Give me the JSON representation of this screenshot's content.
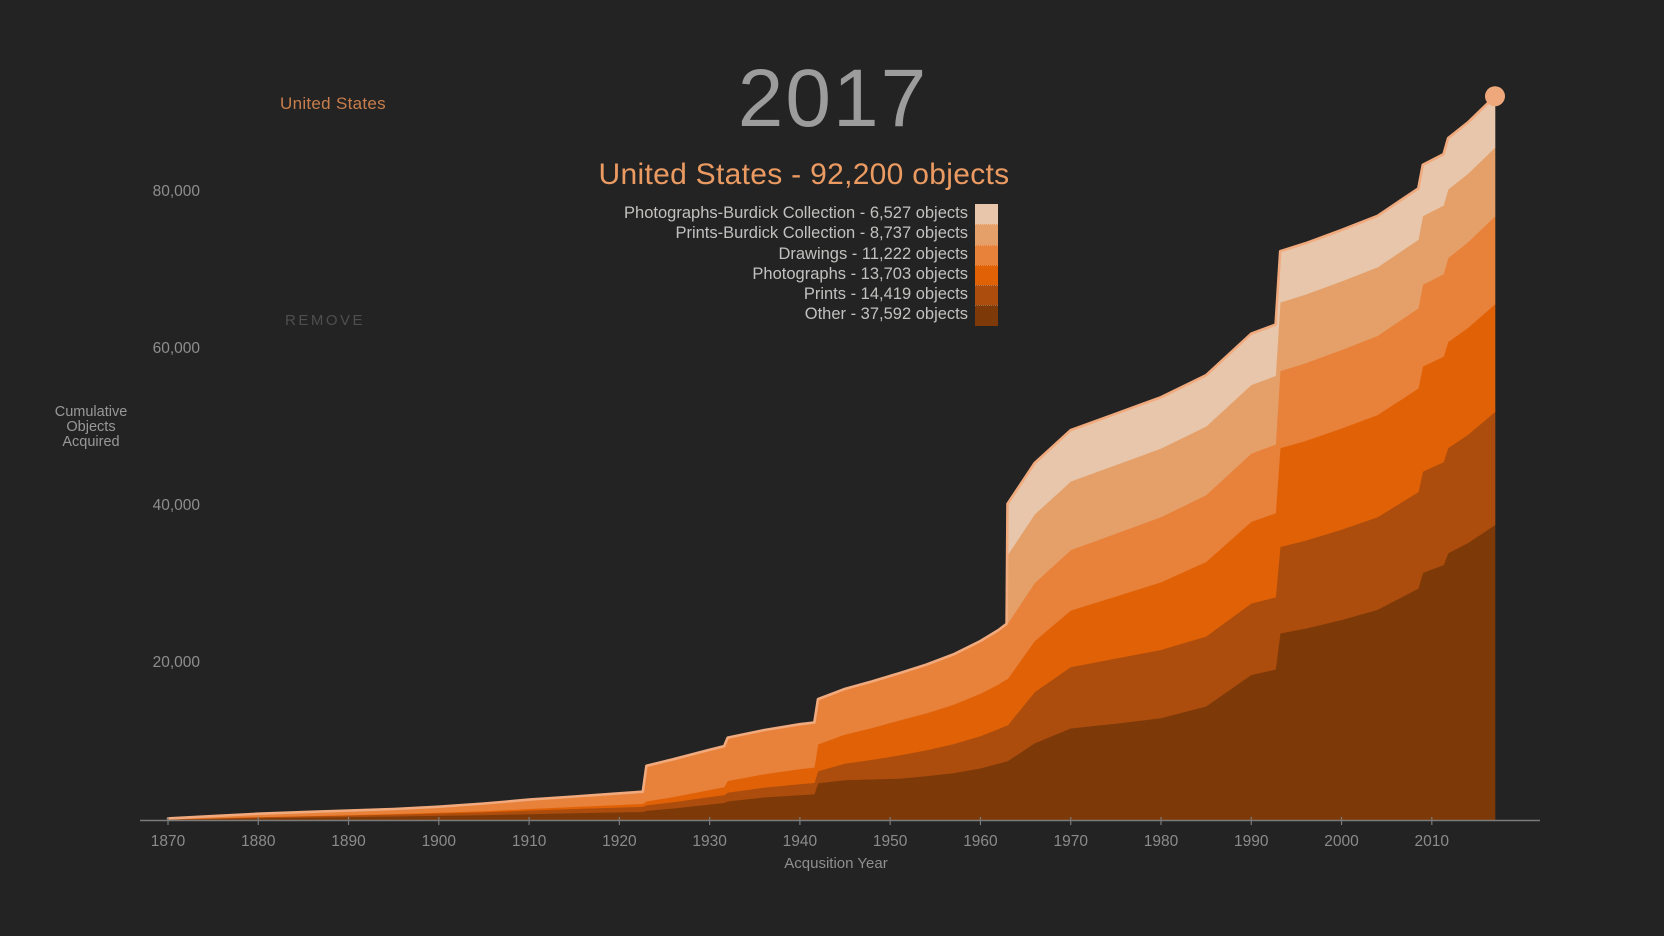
{
  "page": {
    "background": "#232323"
  },
  "header": {
    "year_display": "2017",
    "subtitle": "United States - 92,200 objects"
  },
  "filter_chip": {
    "label": "United States",
    "color": "#c87e4c"
  },
  "remove_button": {
    "label": "REMOVE"
  },
  "legend": {
    "items": [
      {
        "label": "Photographs-Burdick Collection - 6,527 objects",
        "color": "#e7c6ab"
      },
      {
        "label": "Prints-Burdick Collection - 8,737 objects",
        "color": "#e5a069"
      },
      {
        "label": "Drawings - 11,222 objects",
        "color": "#e8813a"
      },
      {
        "label": "Photographs - 13,703 objects",
        "color": "#e16206"
      },
      {
        "label": "Prints - 14,419 objects",
        "color": "#ac4d0e"
      },
      {
        "label": "Other - 37,592 objects",
        "color": "#7d3a08"
      }
    ]
  },
  "chart_data": {
    "type": "area",
    "stacked": true,
    "title": "2017",
    "subtitle": "United States - 92,200 objects",
    "xlabel": "Acqusition Year",
    "ylabel": "Cumulative Objects Acquired",
    "y_axis_title_lines": [
      "Cumulative",
      "Objects",
      "Acquired"
    ],
    "legend_position": "top-center",
    "grid": false,
    "x_domain": [
      1870,
      2017
    ],
    "y_domain": [
      0,
      92200
    ],
    "x_ticks": [
      {
        "value": 1870,
        "label": "1870"
      },
      {
        "value": 1880,
        "label": "1880"
      },
      {
        "value": 1890,
        "label": "1890"
      },
      {
        "value": 1900,
        "label": "1900"
      },
      {
        "value": 1910,
        "label": "1910"
      },
      {
        "value": 1920,
        "label": "1920"
      },
      {
        "value": 1930,
        "label": "1930"
      },
      {
        "value": 1940,
        "label": "1940"
      },
      {
        "value": 1950,
        "label": "1950"
      },
      {
        "value": 1960,
        "label": "1960"
      },
      {
        "value": 1970,
        "label": "1970"
      },
      {
        "value": 1980,
        "label": "1980"
      },
      {
        "value": 1990,
        "label": "1990"
      },
      {
        "value": 2000,
        "label": "2000"
      },
      {
        "value": 2010,
        "label": "2010"
      }
    ],
    "y_ticks": [
      {
        "value": 20000,
        "label": "20,000"
      },
      {
        "value": 40000,
        "label": "40,000"
      },
      {
        "value": 60000,
        "label": "60,000"
      },
      {
        "value": 80000,
        "label": "80,000"
      }
    ],
    "total_at_2017": 92200,
    "years": [
      1870,
      1875,
      1880,
      1885,
      1890,
      1895,
      1900,
      1905,
      1908,
      1910,
      1915,
      1920,
      1922.6,
      1923,
      1926,
      1930,
      1931.6,
      1932,
      1936,
      1940,
      1941.6,
      1942,
      1945,
      1948,
      1951,
      1954,
      1957,
      1960,
      1962,
      1962.9,
      1963,
      1966,
      1970,
      1975,
      1980,
      1985,
      1990,
      1992.7,
      1993.2,
      1996,
      2000,
      2004,
      2008.5,
      2009,
      2011.3,
      2011.8,
      2014,
      2017
    ],
    "series": [
      {
        "name": "Other",
        "final_total": 37592,
        "color": "#7d3a08",
        "values": [
          60,
          150,
          250,
          320,
          400,
          480,
          560,
          650,
          720,
          780,
          900,
          1000,
          1050,
          1200,
          1500,
          2000,
          2200,
          2400,
          2900,
          3200,
          3300,
          4700,
          5100,
          5200,
          5300,
          5600,
          6000,
          6600,
          7200,
          7500,
          7500,
          9800,
          11700,
          12300,
          13000,
          14500,
          18500,
          19200,
          23800,
          24400,
          25500,
          26800,
          29500,
          31500,
          32500,
          34000,
          35300,
          37592
        ]
      },
      {
        "name": "Prints",
        "final_total": 14419,
        "color": "#ac4d0e",
        "values": [
          40,
          80,
          120,
          160,
          200,
          240,
          300,
          360,
          420,
          460,
          540,
          620,
          660,
          700,
          800,
          950,
          1000,
          1100,
          1250,
          1400,
          1450,
          1550,
          2100,
          2500,
          2950,
          3300,
          3700,
          4100,
          4400,
          4550,
          4550,
          6500,
          7800,
          8300,
          8700,
          8900,
          9100,
          9200,
          11000,
          11200,
          11500,
          11800,
          12300,
          12900,
          13100,
          13400,
          13800,
          14419
        ]
      },
      {
        "name": "Photographs",
        "final_total": 13703,
        "color": "#e16206",
        "values": [
          0,
          10,
          20,
          30,
          50,
          70,
          100,
          140,
          170,
          200,
          260,
          330,
          370,
          500,
          650,
          900,
          1000,
          1500,
          1700,
          1900,
          1950,
          3400,
          3700,
          4050,
          4450,
          4700,
          5000,
          5400,
          5700,
          5900,
          5900,
          6500,
          7200,
          7900,
          8600,
          9500,
          10400,
          10700,
          12600,
          12700,
          12900,
          13000,
          13200,
          13400,
          13450,
          13500,
          13600,
          13703
        ]
      },
      {
        "name": "Drawings",
        "final_total": 11222,
        "color": "#e8813a",
        "values": [
          100,
          260,
          410,
          490,
          550,
          610,
          740,
          950,
          1090,
          1160,
          1300,
          1450,
          1520,
          4500,
          4800,
          5100,
          5200,
          5500,
          5600,
          5700,
          5720,
          5750,
          5800,
          5900,
          6000,
          6200,
          6400,
          6700,
          6900,
          7050,
          7050,
          7400,
          7700,
          8000,
          8300,
          8500,
          8700,
          8750,
          9800,
          9900,
          10000,
          10100,
          10200,
          10400,
          10500,
          10700,
          10900,
          11222
        ]
      },
      {
        "name": "Prints-Burdick Collection",
        "final_total": 8737,
        "color": "#e5a069",
        "values": [
          0,
          0,
          0,
          0,
          0,
          0,
          0,
          0,
          0,
          0,
          0,
          0,
          0,
          0,
          0,
          0,
          0,
          0,
          0,
          0,
          0,
          0,
          0,
          0,
          0,
          0,
          0,
          0,
          0,
          0,
          8737,
          8737,
          8737,
          8737,
          8737,
          8737,
          8737,
          8737,
          8737,
          8737,
          8737,
          8737,
          8737,
          8737,
          8737,
          8737,
          8737,
          8737
        ]
      },
      {
        "name": "Photographs-Burdick Collection",
        "final_total": 6527,
        "color": "#e7c6ab",
        "values": [
          0,
          0,
          0,
          0,
          0,
          0,
          0,
          0,
          0,
          0,
          0,
          0,
          0,
          0,
          0,
          0,
          0,
          0,
          0,
          0,
          0,
          0,
          0,
          0,
          0,
          0,
          0,
          0,
          0,
          0,
          6527,
          6527,
          6527,
          6527,
          6527,
          6527,
          6527,
          6527,
          6527,
          6527,
          6527,
          6527,
          6527,
          6527,
          6527,
          6527,
          6527,
          6527
        ]
      }
    ],
    "top_stroke_color": "#f0aa7d",
    "axis_color": "#7b7b7b",
    "end_dot": {
      "year": 2017,
      "value": 92200,
      "color": "#efa87c"
    }
  }
}
